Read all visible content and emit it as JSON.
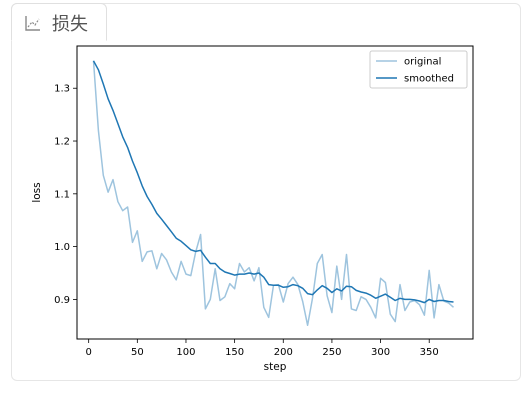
{
  "tab": {
    "label": "损失",
    "icon": "chart-icon"
  },
  "chart_data": {
    "type": "line",
    "title": "",
    "xlabel": "step",
    "ylabel": "loss",
    "xlim": [
      -12,
      395
    ],
    "ylim": [
      0.825,
      1.38
    ],
    "xticks": [
      0,
      50,
      100,
      150,
      200,
      250,
      300,
      350
    ],
    "yticks": [
      0.9,
      1.0,
      1.1,
      1.2,
      1.3
    ],
    "ytick_labels": [
      "0.9",
      "1.0",
      "1.1",
      "1.2",
      "1.3"
    ],
    "legend_position": "top-right",
    "grid": false,
    "series": [
      {
        "name": "original",
        "color": "#9ec4de",
        "x": [
          5,
          10,
          15,
          20,
          25,
          30,
          35,
          40,
          45,
          50,
          55,
          60,
          65,
          70,
          75,
          80,
          85,
          90,
          95,
          100,
          105,
          110,
          115,
          120,
          125,
          130,
          135,
          140,
          145,
          150,
          155,
          160,
          165,
          170,
          175,
          180,
          185,
          190,
          195,
          200,
          205,
          210,
          215,
          220,
          225,
          230,
          235,
          240,
          245,
          250,
          255,
          260,
          265,
          270,
          275,
          280,
          285,
          290,
          295,
          300,
          305,
          310,
          315,
          320,
          325,
          330,
          335,
          340,
          345,
          350,
          355,
          360,
          365,
          370,
          375
        ],
        "y": [
          1.352,
          1.22,
          1.135,
          1.103,
          1.127,
          1.085,
          1.068,
          1.075,
          1.008,
          1.03,
          0.972,
          0.99,
          0.992,
          0.958,
          0.987,
          0.975,
          0.952,
          0.937,
          0.972,
          0.948,
          0.945,
          0.99,
          1.023,
          0.882,
          0.9,
          0.958,
          0.898,
          0.905,
          0.93,
          0.92,
          0.968,
          0.952,
          0.96,
          0.935,
          0.96,
          0.885,
          0.866,
          0.927,
          0.928,
          0.895,
          0.93,
          0.942,
          0.928,
          0.896,
          0.851,
          0.902,
          0.968,
          0.985,
          0.907,
          0.875,
          0.963,
          0.9,
          0.985,
          0.882,
          0.879,
          0.905,
          0.9,
          0.885,
          0.865,
          0.94,
          0.932,
          0.872,
          0.858,
          0.928,
          0.879,
          0.895,
          0.898,
          0.89,
          0.87,
          0.955,
          0.865,
          0.928,
          0.897,
          0.893,
          0.885
        ]
      },
      {
        "name": "smoothed",
        "color": "#1f77b4",
        "x": [
          5,
          10,
          15,
          20,
          25,
          30,
          35,
          40,
          45,
          50,
          55,
          60,
          65,
          70,
          75,
          80,
          85,
          90,
          95,
          100,
          105,
          110,
          115,
          120,
          125,
          130,
          135,
          140,
          145,
          150,
          155,
          160,
          165,
          170,
          175,
          180,
          185,
          190,
          195,
          200,
          205,
          210,
          215,
          220,
          225,
          230,
          235,
          240,
          245,
          250,
          255,
          260,
          265,
          270,
          275,
          280,
          285,
          290,
          295,
          300,
          305,
          310,
          315,
          320,
          325,
          330,
          335,
          340,
          345,
          350,
          355,
          360,
          365,
          370,
          375
        ],
        "y": [
          1.352,
          1.335,
          1.308,
          1.28,
          1.258,
          1.233,
          1.208,
          1.188,
          1.162,
          1.14,
          1.115,
          1.095,
          1.08,
          1.063,
          1.052,
          1.04,
          1.028,
          1.016,
          1.01,
          1.002,
          0.994,
          0.991,
          0.993,
          0.98,
          0.968,
          0.968,
          0.958,
          0.952,
          0.949,
          0.946,
          0.948,
          0.948,
          0.95,
          0.948,
          0.95,
          0.942,
          0.928,
          0.927,
          0.927,
          0.923,
          0.924,
          0.928,
          0.926,
          0.921,
          0.911,
          0.909,
          0.918,
          0.926,
          0.921,
          0.913,
          0.92,
          0.916,
          0.925,
          0.924,
          0.917,
          0.914,
          0.912,
          0.908,
          0.902,
          0.906,
          0.91,
          0.904,
          0.898,
          0.902,
          0.9,
          0.9,
          0.899,
          0.897,
          0.894,
          0.9,
          0.896,
          0.898,
          0.898,
          0.896,
          0.895
        ]
      }
    ]
  }
}
